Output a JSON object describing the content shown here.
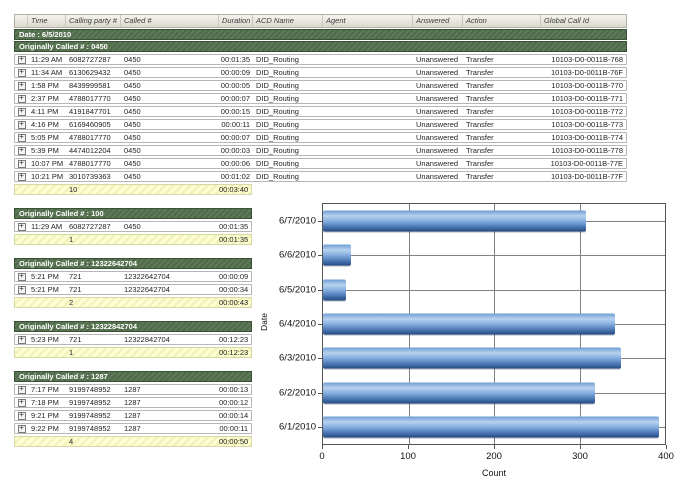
{
  "table": {
    "columns": [
      "Time",
      "Calling party #",
      "Called #",
      "Duration",
      "ACD Name",
      "Agent",
      "Answered",
      "Action",
      "Global Call Id"
    ],
    "date_band": "Date : 6/5/2010",
    "groups": [
      {
        "title": "Originally Called # : 0450",
        "full_width": true,
        "rows": [
          {
            "time": "11:29 AM",
            "calling": "6082727287",
            "called": "0450",
            "duration": "00:01:35",
            "acd": "DID_Routing",
            "agent": "",
            "answered": "Unanswered",
            "action": "Transfer",
            "global_id": "10103-D0-0011B-768"
          },
          {
            "time": "11:34 AM",
            "calling": "6130629432",
            "called": "0450",
            "duration": "00:00:09",
            "acd": "DID_Routing",
            "agent": "",
            "answered": "Unanswered",
            "action": "Transfer",
            "global_id": "10103-D0-0011B-76F"
          },
          {
            "time": "1:58 PM",
            "calling": "8439999581",
            "called": "0450",
            "duration": "00:00:05",
            "acd": "DID_Routing",
            "agent": "",
            "answered": "Unanswered",
            "action": "Transfer",
            "global_id": "10103-D0-0011B-770"
          },
          {
            "time": "2:37 PM",
            "calling": "4788017770",
            "called": "0450",
            "duration": "00:00:07",
            "acd": "DID_Routing",
            "agent": "",
            "answered": "Unanswered",
            "action": "Transfer",
            "global_id": "10103-D0-0011B-771"
          },
          {
            "time": "4:11 PM",
            "calling": "4191847701",
            "called": "0450",
            "duration": "00:00:15",
            "acd": "DID_Routing",
            "agent": "",
            "answered": "Unanswered",
            "action": "Transfer",
            "global_id": "10103-D0-0011B-772"
          },
          {
            "time": "4:16 PM",
            "calling": "6169460905",
            "called": "0450",
            "duration": "00:00:11",
            "acd": "DID_Routing",
            "agent": "",
            "answered": "Unanswered",
            "action": "Transfer",
            "global_id": "10103-D0-0011B-773"
          },
          {
            "time": "5:05 PM",
            "calling": "4788017770",
            "called": "0450",
            "duration": "00:00:07",
            "acd": "DID_Routing",
            "agent": "",
            "answered": "Unanswered",
            "action": "Transfer",
            "global_id": "10103-D0-0011B-774"
          },
          {
            "time": "5:39 PM",
            "calling": "4474012204",
            "called": "0450",
            "duration": "00:00:03",
            "acd": "DID_Routing",
            "agent": "",
            "answered": "Unanswered",
            "action": "Transfer",
            "global_id": "10103-D0-0011B-778"
          },
          {
            "time": "10:07 PM",
            "calling": "4788017770",
            "called": "0450",
            "duration": "00:00:06",
            "acd": "DID_Routing",
            "agent": "",
            "answered": "Unanswered",
            "action": "Transfer",
            "global_id": "10103-D0-0011B-77E"
          },
          {
            "time": "10:21 PM",
            "calling": "3010739363",
            "called": "0450",
            "duration": "00:01:02",
            "acd": "DID_Routing",
            "agent": "",
            "answered": "Unanswered",
            "action": "Transfer",
            "global_id": "10103-D0-0011B-77F"
          }
        ],
        "summary": {
          "count": "10",
          "duration": "00:03:40"
        }
      },
      {
        "title": "Originally Called # : 100",
        "full_width": false,
        "rows": [
          {
            "time": "11:29 AM",
            "calling": "6082727287",
            "called": "0450",
            "duration": "00:01:35"
          }
        ],
        "summary": {
          "count": "1",
          "duration": "00:01:35"
        }
      },
      {
        "title": "Originally Called # : 12322642704",
        "full_width": false,
        "rows": [
          {
            "time": "5:21 PM",
            "calling": "721",
            "called": "12322642704",
            "duration": "00:00:09"
          },
          {
            "time": "5:21 PM",
            "calling": "721",
            "called": "12322642704",
            "duration": "00:00:34"
          }
        ],
        "summary": {
          "count": "2",
          "duration": "00:00:43"
        }
      },
      {
        "title": "Originally Called # : 12322842704",
        "full_width": false,
        "rows": [
          {
            "time": "5:23 PM",
            "calling": "721",
            "called": "12322842704",
            "duration": "00:12:23"
          }
        ],
        "summary": {
          "count": "1",
          "duration": "00:12:23"
        }
      },
      {
        "title": "Originally Called # : 1287",
        "full_width": false,
        "rows": [
          {
            "time": "7:17 PM",
            "calling": "9199748952",
            "called": "1287",
            "duration": "00:00:13"
          },
          {
            "time": "7:18 PM",
            "calling": "9199748952",
            "called": "1287",
            "duration": "00:00:12"
          },
          {
            "time": "9:21 PM",
            "calling": "9199748952",
            "called": "1287",
            "duration": "00:00:14"
          },
          {
            "time": "9:22 PM",
            "calling": "9199748952",
            "called": "1287",
            "duration": "00:00:11"
          }
        ],
        "summary": {
          "count": "4",
          "duration": "00:00:50"
        }
      }
    ]
  },
  "chart_data": {
    "type": "bar",
    "orientation": "horizontal",
    "title": "",
    "categories": [
      "6/7/2010",
      "6/6/2010",
      "6/5/2010",
      "6/4/2010",
      "6/3/2010",
      "6/2/2010",
      "6/1/2010"
    ],
    "values": [
      308,
      33,
      27,
      341,
      348,
      318,
      393
    ],
    "xlabel": "Count",
    "ylabel": "Date",
    "xlim": [
      0,
      400
    ],
    "xticks": [
      0,
      100,
      200,
      300,
      400
    ],
    "grid": true,
    "legend": "none",
    "bar_color_top": "#b7d2ee",
    "bar_color_bottom": "#27497f"
  }
}
